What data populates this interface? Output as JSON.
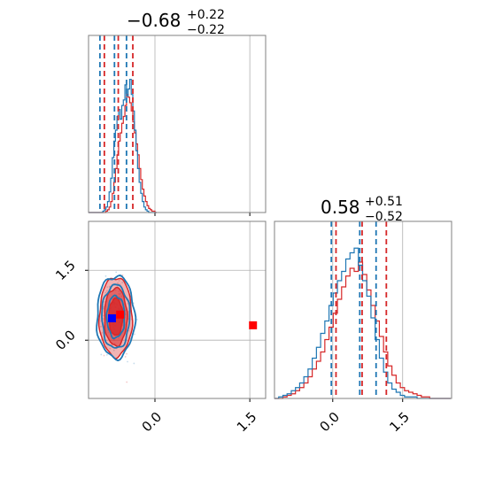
{
  "chart_data": {
    "type": "corner",
    "colors": {
      "series_a": "#1f77b4",
      "series_b": "#d62728"
    },
    "parameters": [
      {
        "title": {
          "median": "−0.68",
          "plus": "+0.22",
          "minus": "−0.22"
        }
      },
      {
        "title": {
          "median": "0.58",
          "plus": "+0.51",
          "minus": "−0.52"
        }
      }
    ],
    "axes": {
      "p1": {
        "range": [
          -1.05,
          1.75
        ],
        "ticks": [
          0.0,
          1.5
        ],
        "tick_labels": [
          "0.0",
          "1.5"
        ]
      },
      "p2": {
        "range": [
          -1.25,
          2.55
        ],
        "ticks": [
          0.0,
          1.5
        ],
        "tick_labels": [
          "0.0",
          "1.5"
        ]
      }
    },
    "quantile_lines": {
      "p1": {
        "series_a": [
          -0.87,
          -0.64,
          -0.45
        ],
        "series_b": [
          -0.8,
          -0.58,
          -0.35
        ]
      },
      "p2": {
        "series_a": [
          -0.03,
          0.58,
          0.93
        ],
        "series_b": [
          0.07,
          0.63,
          1.15
        ]
      }
    },
    "markers": [
      {
        "series": "series_b",
        "x": -0.55,
        "y": 0.55
      },
      {
        "series": "series_a",
        "x": -0.68,
        "y": 0.47
      },
      {
        "series": "series_b",
        "x": 1.55,
        "y": 0.32
      }
    ],
    "hist_p1": {
      "bins_start": -1.05,
      "bin_width": 0.025,
      "series_a": [
        0,
        0,
        0,
        0,
        0,
        0,
        0,
        0,
        0,
        0.01,
        0.02,
        0.04,
        0.08,
        0.15,
        0.25,
        0.4,
        0.52,
        0.6,
        0.7,
        0.75,
        0.68,
        0.78,
        0.82,
        0.93,
        0.85,
        0.9,
        0.97,
        0.86,
        0.74,
        0.6,
        0.45,
        0.32,
        0.22,
        0.14,
        0.08,
        0.04,
        0.02,
        0.01,
        0,
        0,
        0,
        0,
        0
      ],
      "series_b": [
        0,
        0,
        0,
        0,
        0,
        0,
        0,
        0,
        0,
        0,
        0,
        0.01,
        0.02,
        0.04,
        0.08,
        0.14,
        0.22,
        0.32,
        0.42,
        0.52,
        0.58,
        0.65,
        0.7,
        0.78,
        0.86,
        0.84,
        0.8,
        0.74,
        0.66,
        0.58,
        0.5,
        0.42,
        0.32,
        0.24,
        0.17,
        0.12,
        0.08,
        0.05,
        0.03,
        0.02,
        0.01,
        0.01,
        0
      ]
    },
    "hist_p2": {
      "bins_start": -1.25,
      "bin_width": 0.09,
      "series_a": [
        0,
        0.01,
        0.02,
        0.03,
        0.05,
        0.07,
        0.1,
        0.14,
        0.19,
        0.26,
        0.33,
        0.42,
        0.5,
        0.6,
        0.68,
        0.76,
        0.82,
        0.9,
        0.94,
        0.97,
        0.86,
        0.76,
        0.66,
        0.52,
        0.38,
        0.26,
        0.17,
        0.1,
        0.06,
        0.04,
        0.02,
        0.01,
        0.01,
        0.01,
        0,
        0,
        0,
        0,
        0,
        0,
        0,
        0
      ],
      "series_b": [
        0,
        0,
        0.01,
        0.02,
        0.03,
        0.05,
        0.07,
        0.1,
        0.14,
        0.19,
        0.24,
        0.3,
        0.38,
        0.46,
        0.55,
        0.64,
        0.72,
        0.79,
        0.84,
        0.82,
        0.88,
        0.8,
        0.7,
        0.6,
        0.5,
        0.4,
        0.3,
        0.21,
        0.15,
        0.1,
        0.07,
        0.05,
        0.04,
        0.03,
        0.02,
        0.01,
        0.01,
        0,
        0,
        0,
        0,
        0
      ]
    },
    "contours": {
      "center": [
        -0.62,
        0.5
      ],
      "series_b_filled_levels": [
        {
          "rx": 0.26,
          "ry": 0.85,
          "opacity": 0.35
        },
        {
          "rx": 0.18,
          "ry": 0.62,
          "opacity": 0.55
        },
        {
          "rx": 0.11,
          "ry": 0.4,
          "opacity": 0.8
        }
      ],
      "series_a_levels": [
        {
          "rx": 0.3,
          "ry": 0.88
        },
        {
          "rx": 0.22,
          "ry": 0.68
        },
        {
          "rx": 0.14,
          "ry": 0.45
        }
      ]
    }
  }
}
